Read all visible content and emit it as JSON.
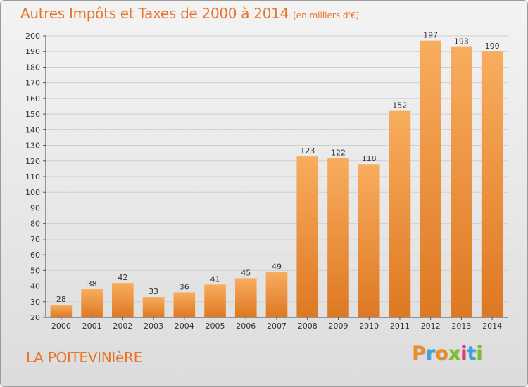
{
  "title": {
    "main": "Autres Impôts et Taxes de 2000 à 2014",
    "unit": "(en milliers d'€)"
  },
  "commune": "LA POITEVINIèRE",
  "brand": {
    "text": "Proxiti",
    "colors": [
      "#f08a24",
      "#3aa4e0",
      "#f08a24",
      "#7bbf2a",
      "#e9326f",
      "#3aa4e0",
      "#7bbf2a"
    ]
  },
  "colors": {
    "bar_light": "#f8ad5e",
    "bar_dark": "#de7822",
    "title": "#e8742a",
    "grid": "#cfcfcf"
  },
  "chart_data": {
    "type": "bar",
    "categories": [
      "2000",
      "2001",
      "2002",
      "2003",
      "2004",
      "2005",
      "2006",
      "2007",
      "2008",
      "2009",
      "2010",
      "2011",
      "2012",
      "2013",
      "2014"
    ],
    "values": [
      28,
      38,
      42,
      33,
      36,
      41,
      45,
      49,
      123,
      122,
      118,
      152,
      197,
      193,
      190
    ],
    "ylim": [
      20,
      200
    ],
    "yticks": [
      20,
      30,
      40,
      50,
      60,
      70,
      80,
      90,
      100,
      110,
      120,
      130,
      140,
      150,
      160,
      170,
      180,
      190,
      200
    ],
    "grid": true,
    "data_labels": true
  }
}
